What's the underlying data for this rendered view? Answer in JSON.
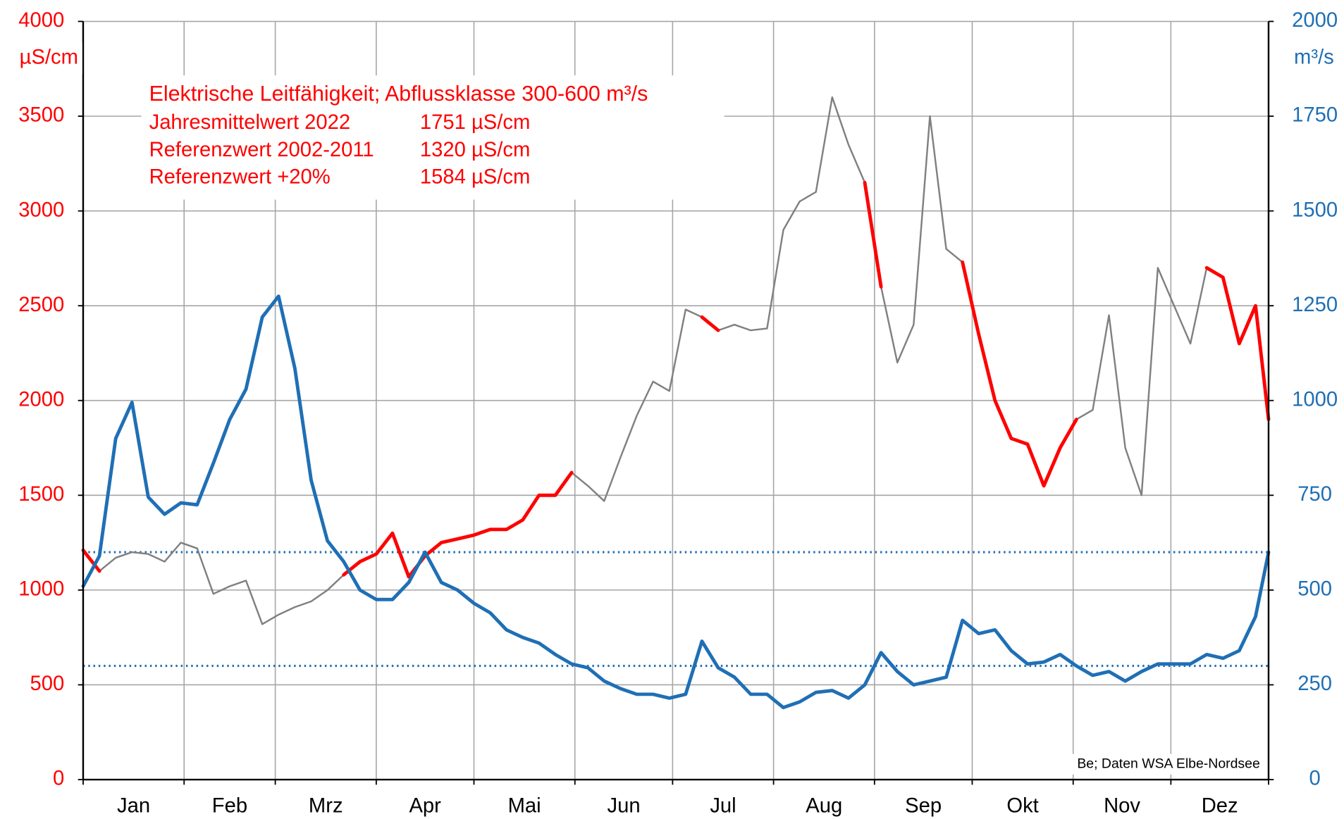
{
  "chart_data": {
    "type": "line",
    "ylabel": "µS/cm",
    "y2label": "m³/s",
    "annotation_title": "Elektrische Leitfähigkeit; Abflussklasse 300-600 m³/s",
    "annotation_rows": [
      [
        "Jahresmittelwert 2022",
        "1751 µS/cm"
      ],
      [
        "Referenzwert 2002-2011",
        "1320 µS/cm"
      ],
      [
        "Referenzwert +20%",
        "1584 µS/cm"
      ]
    ],
    "source": "Be; Daten WSA Elbe-Nordsee",
    "month_labels": [
      "Jan",
      "Feb",
      "Mrz",
      "Apr",
      "Mai",
      "Jun",
      "Jul",
      "Aug",
      "Sep",
      "Okt",
      "Nov",
      "Dez"
    ],
    "xlim": [
      1,
      365
    ],
    "xticks": [
      1,
      32,
      60,
      91,
      121,
      152,
      182,
      213,
      244,
      274,
      305,
      335,
      365
    ],
    "ylim": [
      0,
      4000
    ],
    "yticks": [
      0,
      500,
      1000,
      1500,
      2000,
      2500,
      3000,
      3500,
      4000
    ],
    "y2lim": [
      0,
      2000
    ],
    "y2ticks": [
      0,
      250,
      500,
      750,
      1000,
      1250,
      1500,
      1750,
      2000
    ],
    "y2_reference_lines": [
      300,
      600
    ],
    "reference_color": "#1f6fb5",
    "grid": true,
    "x": [
      1,
      6,
      11,
      16,
      21,
      26,
      31,
      36,
      41,
      46,
      51,
      56,
      61,
      66,
      71,
      76,
      81,
      86,
      91,
      96,
      101,
      106,
      111,
      116,
      121,
      126,
      131,
      136,
      141,
      146,
      151,
      156,
      161,
      166,
      171,
      176,
      181,
      186,
      191,
      196,
      201,
      206,
      211,
      216,
      221,
      226,
      231,
      236,
      241,
      246,
      251,
      256,
      261,
      266,
      271,
      276,
      281,
      286,
      291,
      296,
      301,
      306,
      311,
      316,
      321,
      326,
      331,
      336,
      341,
      346,
      351,
      356,
      361,
      365
    ],
    "series": [
      {
        "name": "Elektrische Leitfähigkeit",
        "color": "#808080",
        "width": 2,
        "axis": "y",
        "values": [
          1210,
          1100,
          1170,
          1200,
          1190,
          1150,
          1250,
          1220,
          980,
          1020,
          1050,
          820,
          870,
          910,
          940,
          1000,
          1080,
          1150,
          1190,
          1300,
          1070,
          1180,
          1250,
          1270,
          1290,
          1320,
          1320,
          1370,
          1500,
          1500,
          1620,
          1550,
          1470,
          1700,
          1920,
          2100,
          2050,
          2480,
          2440,
          2370,
          2400,
          2370,
          2380,
          2900,
          3050,
          3100,
          3600,
          3350,
          3150,
          2600,
          2200,
          2400,
          3500,
          2800,
          2730,
          2350,
          2000,
          1800,
          1770,
          1550,
          1750,
          1900,
          1950,
          2450,
          1750,
          1500,
          2700,
          2500,
          2300,
          2700,
          2650,
          2300,
          2500,
          1900
        ]
      },
      {
        "name": "Abflussklasse 300-600 m³/s",
        "color": "#ff0000",
        "width": 4,
        "axis": "y",
        "values": [
          1210,
          1100,
          null,
          null,
          null,
          null,
          null,
          null,
          null,
          null,
          null,
          null,
          null,
          null,
          null,
          null,
          1080,
          1150,
          1190,
          1300,
          1070,
          1180,
          1250,
          1270,
          1290,
          1320,
          1320,
          1370,
          1500,
          1500,
          1620,
          null,
          null,
          null,
          null,
          null,
          null,
          null,
          2440,
          2370,
          null,
          null,
          null,
          null,
          null,
          null,
          null,
          null,
          3150,
          2600,
          null,
          null,
          null,
          null,
          2730,
          2350,
          2000,
          1800,
          1770,
          1550,
          1750,
          1900,
          null,
          null,
          null,
          null,
          null,
          null,
          null,
          2700,
          2650,
          2300,
          2500,
          1900
        ]
      },
      {
        "name": "Abfluss",
        "color": "#1f6fb5",
        "width": 4,
        "axis": "y2",
        "values": [
          510,
          590,
          900,
          995,
          745,
          700,
          730,
          725,
          835,
          950,
          1030,
          1220,
          1275,
          1085,
          790,
          630,
          575,
          500,
          475,
          475,
          520,
          600,
          520,
          500,
          465,
          440,
          395,
          375,
          360,
          330,
          305,
          295,
          260,
          240,
          225,
          225,
          215,
          225,
          365,
          295,
          270,
          225,
          225,
          190,
          205,
          230,
          235,
          215,
          250,
          335,
          285,
          250,
          260,
          270,
          420,
          385,
          395,
          340,
          305,
          310,
          330,
          300,
          275,
          285,
          260,
          285,
          305,
          305,
          305,
          330,
          320,
          340,
          430,
          600
        ]
      }
    ]
  }
}
